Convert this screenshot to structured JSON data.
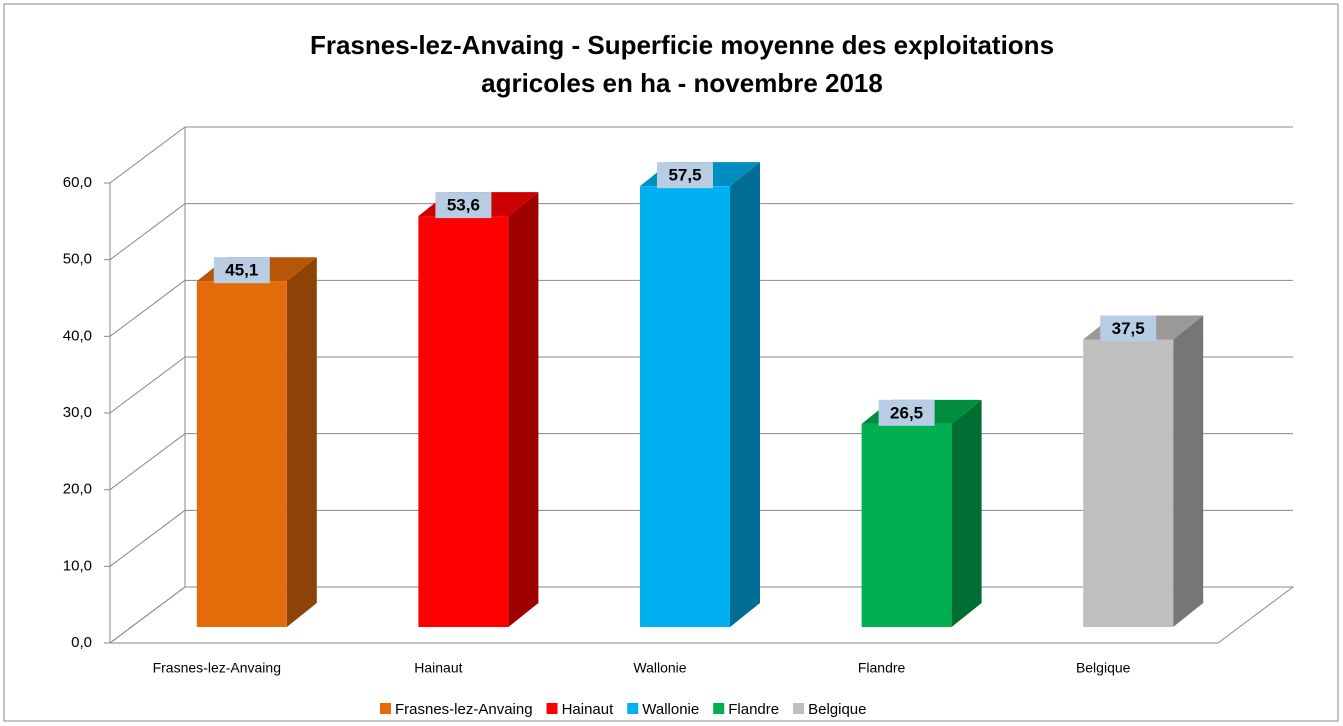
{
  "chart_data": {
    "type": "bar3d",
    "title": [
      "Frasnes-lez-Anvaing - Superficie moyenne des exploitations",
      "agricoles en ha - novembre 2018"
    ],
    "categories": [
      "Frasnes-lez-Anvaing",
      "Hainaut",
      "Wallonie",
      "Flandre",
      "Belgique"
    ],
    "values": [
      45.1,
      53.6,
      57.5,
      26.5,
      37.5
    ],
    "value_labels": [
      "45,1",
      "53,6",
      "57,5",
      "26,5",
      "37,5"
    ],
    "colors": [
      "#e36c0a",
      "#ff0000",
      "#00b0f0",
      "#00b050",
      "#bfbfbf"
    ],
    "ylim": [
      0,
      60
    ],
    "yticks": [
      {
        "value": 0,
        "label": "0,0"
      },
      {
        "value": 10,
        "label": "10,0"
      },
      {
        "value": 20,
        "label": "20,0"
      },
      {
        "value": 30,
        "label": "30,0"
      },
      {
        "value": 40,
        "label": "40,0"
      },
      {
        "value": 50,
        "label": "50,0"
      },
      {
        "value": 60,
        "label": "60,0"
      }
    ],
    "grid": true,
    "legend": "bottom"
  }
}
